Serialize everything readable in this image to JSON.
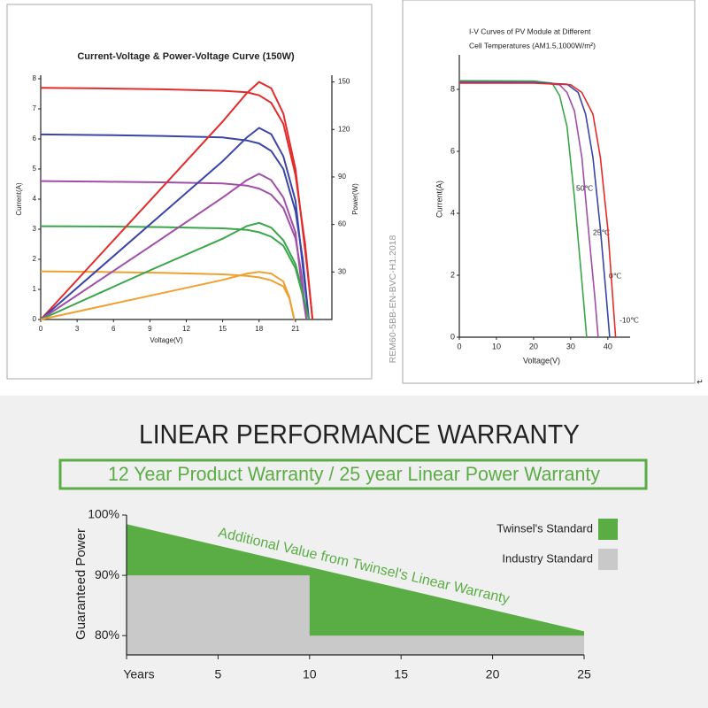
{
  "chart_data": [
    {
      "type": "line",
      "title": "Current-Voltage & Power-Voltage Curve (150W)",
      "x_label": "Voltage(V)",
      "y_label": "Current(A)",
      "y2_label": "Power(W)",
      "xlim": [
        0,
        24
      ],
      "xticks": [
        0,
        3,
        6,
        9,
        12,
        15,
        18,
        21
      ],
      "ylim": [
        0,
        8
      ],
      "yticks": [
        0,
        1,
        2,
        3,
        4,
        5,
        6,
        7,
        8
      ],
      "y2lim": [
        0,
        152
      ],
      "y2ticks": [
        30,
        60,
        90,
        120,
        150
      ],
      "series": [
        {
          "color": "#e32b2b",
          "x": [
            0,
            5,
            10,
            15,
            17,
            18,
            19,
            20,
            21,
            21.8,
            22.4
          ],
          "values": [
            7.7,
            7.68,
            7.65,
            7.6,
            7.55,
            7.45,
            7.2,
            6.5,
            4.8,
            2.5,
            0
          ]
        },
        {
          "color": "#3a45a8",
          "x": [
            0,
            5,
            10,
            15,
            17,
            18,
            19,
            20,
            21,
            21.6,
            22.1
          ],
          "values": [
            6.15,
            6.13,
            6.1,
            6.05,
            5.95,
            5.85,
            5.6,
            5.0,
            3.6,
            2.0,
            0
          ]
        },
        {
          "color": "#a04fa8",
          "x": [
            0,
            5,
            10,
            15,
            17,
            18,
            19,
            20,
            21,
            21.5,
            21.9
          ],
          "values": [
            4.6,
            4.58,
            4.56,
            4.52,
            4.45,
            4.35,
            4.15,
            3.7,
            2.7,
            1.5,
            0
          ]
        },
        {
          "color": "#3aa64a",
          "x": [
            0,
            5,
            10,
            15,
            17,
            18,
            19,
            20,
            21,
            21.6,
            22.1
          ],
          "values": [
            3.1,
            3.09,
            3.07,
            3.03,
            2.98,
            2.9,
            2.75,
            2.45,
            1.7,
            0.8,
            0
          ]
        },
        {
          "color": "#f0a030",
          "x": [
            0,
            5,
            10,
            15,
            17,
            18,
            19,
            20,
            20.5,
            20.9
          ],
          "values": [
            1.6,
            1.58,
            1.55,
            1.5,
            1.45,
            1.4,
            1.3,
            1.1,
            0.7,
            0
          ]
        },
        {
          "color": "#e32b2b",
          "axis": "y2",
          "x": [
            0,
            9,
            15,
            17,
            18,
            19,
            20,
            21,
            22,
            22.4
          ],
          "values": [
            0,
            75,
            125,
            143,
            150,
            146,
            130,
            95,
            30,
            0
          ]
        },
        {
          "color": "#3a45a8",
          "axis": "y2",
          "x": [
            0,
            9,
            15,
            17,
            18,
            19,
            20,
            21,
            21.8,
            22.1
          ],
          "values": [
            0,
            60,
            100,
            115,
            121,
            117,
            103,
            75,
            20,
            0
          ]
        },
        {
          "color": "#a04fa8",
          "axis": "y2",
          "x": [
            0,
            9,
            15,
            17,
            18,
            19,
            20,
            21,
            21.6,
            21.9
          ],
          "values": [
            0,
            46,
            77,
            88,
            92,
            88,
            77,
            55,
            15,
            0
          ]
        },
        {
          "color": "#3aa64a",
          "axis": "y2",
          "x": [
            0,
            9,
            15,
            17,
            18,
            19,
            20,
            21,
            21.8,
            22.1
          ],
          "values": [
            0,
            31,
            51,
            59,
            61,
            58,
            50,
            35,
            10,
            0
          ]
        },
        {
          "color": "#f0a030",
          "axis": "y2",
          "x": [
            0,
            9,
            15,
            17,
            18,
            19,
            20,
            20.5,
            20.9
          ],
          "values": [
            0,
            15,
            25,
            29,
            30,
            29,
            24,
            14,
            0
          ]
        }
      ]
    },
    {
      "type": "line",
      "title": [
        "I-V Curves of PV Module at Different",
        "Cell Temperatures (AM1.5,1000W/m²)"
      ],
      "x_label": "Voltage(V)",
      "y_label": "Current(A)",
      "annotation": "REM60-5BB-EN-BVC-H1.2018",
      "note": "↵",
      "xlim": [
        0,
        46
      ],
      "xticks": [
        0,
        10,
        20,
        30,
        40
      ],
      "ylim": [
        0,
        9
      ],
      "yticks": [
        0,
        2,
        4,
        6,
        8
      ],
      "series": [
        {
          "name": "50℃",
          "color": "#3aa64a",
          "x": [
            0,
            20,
            25,
            27,
            29,
            31,
            33,
            34.3
          ],
          "values": [
            8.28,
            8.27,
            8.2,
            7.8,
            6.8,
            4.5,
            1.8,
            0
          ]
        },
        {
          "name": "25℃",
          "color": "#a04fa8",
          "x": [
            0,
            20,
            27,
            29,
            31,
            33,
            35,
            36.5,
            37.4
          ],
          "values": [
            8.24,
            8.23,
            8.15,
            7.9,
            7.3,
            5.8,
            3.2,
            1.3,
            0
          ]
        },
        {
          "name": "0℃",
          "color": "#3a45a8",
          "x": [
            0,
            20,
            29,
            32,
            34,
            36,
            38,
            39.6,
            40.5
          ],
          "values": [
            8.22,
            8.22,
            8.17,
            7.9,
            7.2,
            5.8,
            3.5,
            1.3,
            0
          ]
        },
        {
          "name": "-10℃",
          "color": "#e32b2b",
          "x": [
            0,
            20,
            30,
            33,
            36,
            38,
            40,
            41.3,
            42.1
          ],
          "values": [
            8.2,
            8.2,
            8.15,
            7.9,
            7.2,
            5.8,
            3.5,
            1.3,
            0
          ]
        }
      ]
    },
    {
      "type": "area",
      "title": "LINEAR PERFORMANCE WARRANTY",
      "subtitle": "12 Year Product Warranty / 25 year Linear Power Warranty",
      "y_label": "Guaranteed Power",
      "annotation": "Additional Value from Twinsel's Linear Warranty",
      "xlim": [
        0,
        25
      ],
      "xticks": [
        {
          "value": 0,
          "label": "Years"
        },
        5,
        10,
        15,
        20,
        25
      ],
      "ylim": [
        76.8,
        100
      ],
      "yticks": [
        {
          "value": 80,
          "label": "80%"
        },
        {
          "value": 90,
          "label": "90%"
        },
        {
          "value": 100,
          "label": "100%"
        }
      ],
      "series": [
        {
          "name": "Twinsel's Standard",
          "color": "#5aad45",
          "x": [
            0,
            25
          ],
          "values": [
            98.5,
            80.7
          ]
        },
        {
          "name": "Industry Standard",
          "color": "#c9c9c9",
          "x": [
            0,
            10,
            10,
            25
          ],
          "values": [
            90,
            90,
            80,
            80
          ]
        }
      ]
    }
  ]
}
